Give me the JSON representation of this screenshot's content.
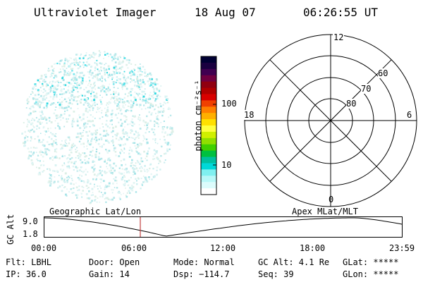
{
  "header": {
    "instrument": "Ultraviolet Imager",
    "date": "18 Aug 07",
    "time": "06:26:55 UT"
  },
  "colorbar": {
    "unit_label": "photon cm⁻²s⁻¹",
    "tick_labels": [
      "100",
      "10"
    ],
    "colors": [
      "#000033",
      "#1a0040",
      "#400050",
      "#700040",
      "#900010",
      "#b00000",
      "#d80000",
      "#f04000",
      "#ff8000",
      "#ffb000",
      "#ffe000",
      "#ffff40",
      "#d0f000",
      "#90e000",
      "#40d000",
      "#00c040",
      "#00c0a0",
      "#00d8d8",
      "#80f0f0",
      "#b8f8f8",
      "#dcfcfc",
      "#ffffff"
    ]
  },
  "polar": {
    "mlt_labels": {
      "top": "12",
      "left": "18",
      "right": "6",
      "bottom": "0"
    },
    "lat_labels": [
      "60",
      "70",
      "80"
    ]
  },
  "timeline": {
    "y_axis_label": "GC Alt",
    "y_top": "9.0",
    "y_bottom": "1.8",
    "left_caption": "Geographic Lat/Lon",
    "right_caption": "Apex MLat/MLT",
    "time_ticks": [
      "00:00",
      "06:00",
      "12:00",
      "18:00",
      "23:59"
    ],
    "current_time_fraction": 0.2687,
    "marker_color": "#c04040"
  },
  "info": {
    "row1": {
      "flt": "Flt: LBHL",
      "door": "Door: Open",
      "mode": "Mode: Normal",
      "gcalt": "GC Alt: 4.1 Re",
      "glat": "GLat: *****"
    },
    "row2": {
      "ip": "IP: 36.0",
      "gain": "Gain: 14",
      "dsp": "Dsp: −114.7",
      "seq": "Seq: 39",
      "glon": "GLon: *****"
    }
  },
  "image_palette": {
    "speckle": [
      "#cfeff0",
      "#b8e8ea",
      "#a8e4e8",
      "#d8f2f2",
      "#e4f6f4",
      "#dcefe6"
    ],
    "bright": [
      "#30d8e0",
      "#58e0e8",
      "#80e8ee"
    ]
  }
}
